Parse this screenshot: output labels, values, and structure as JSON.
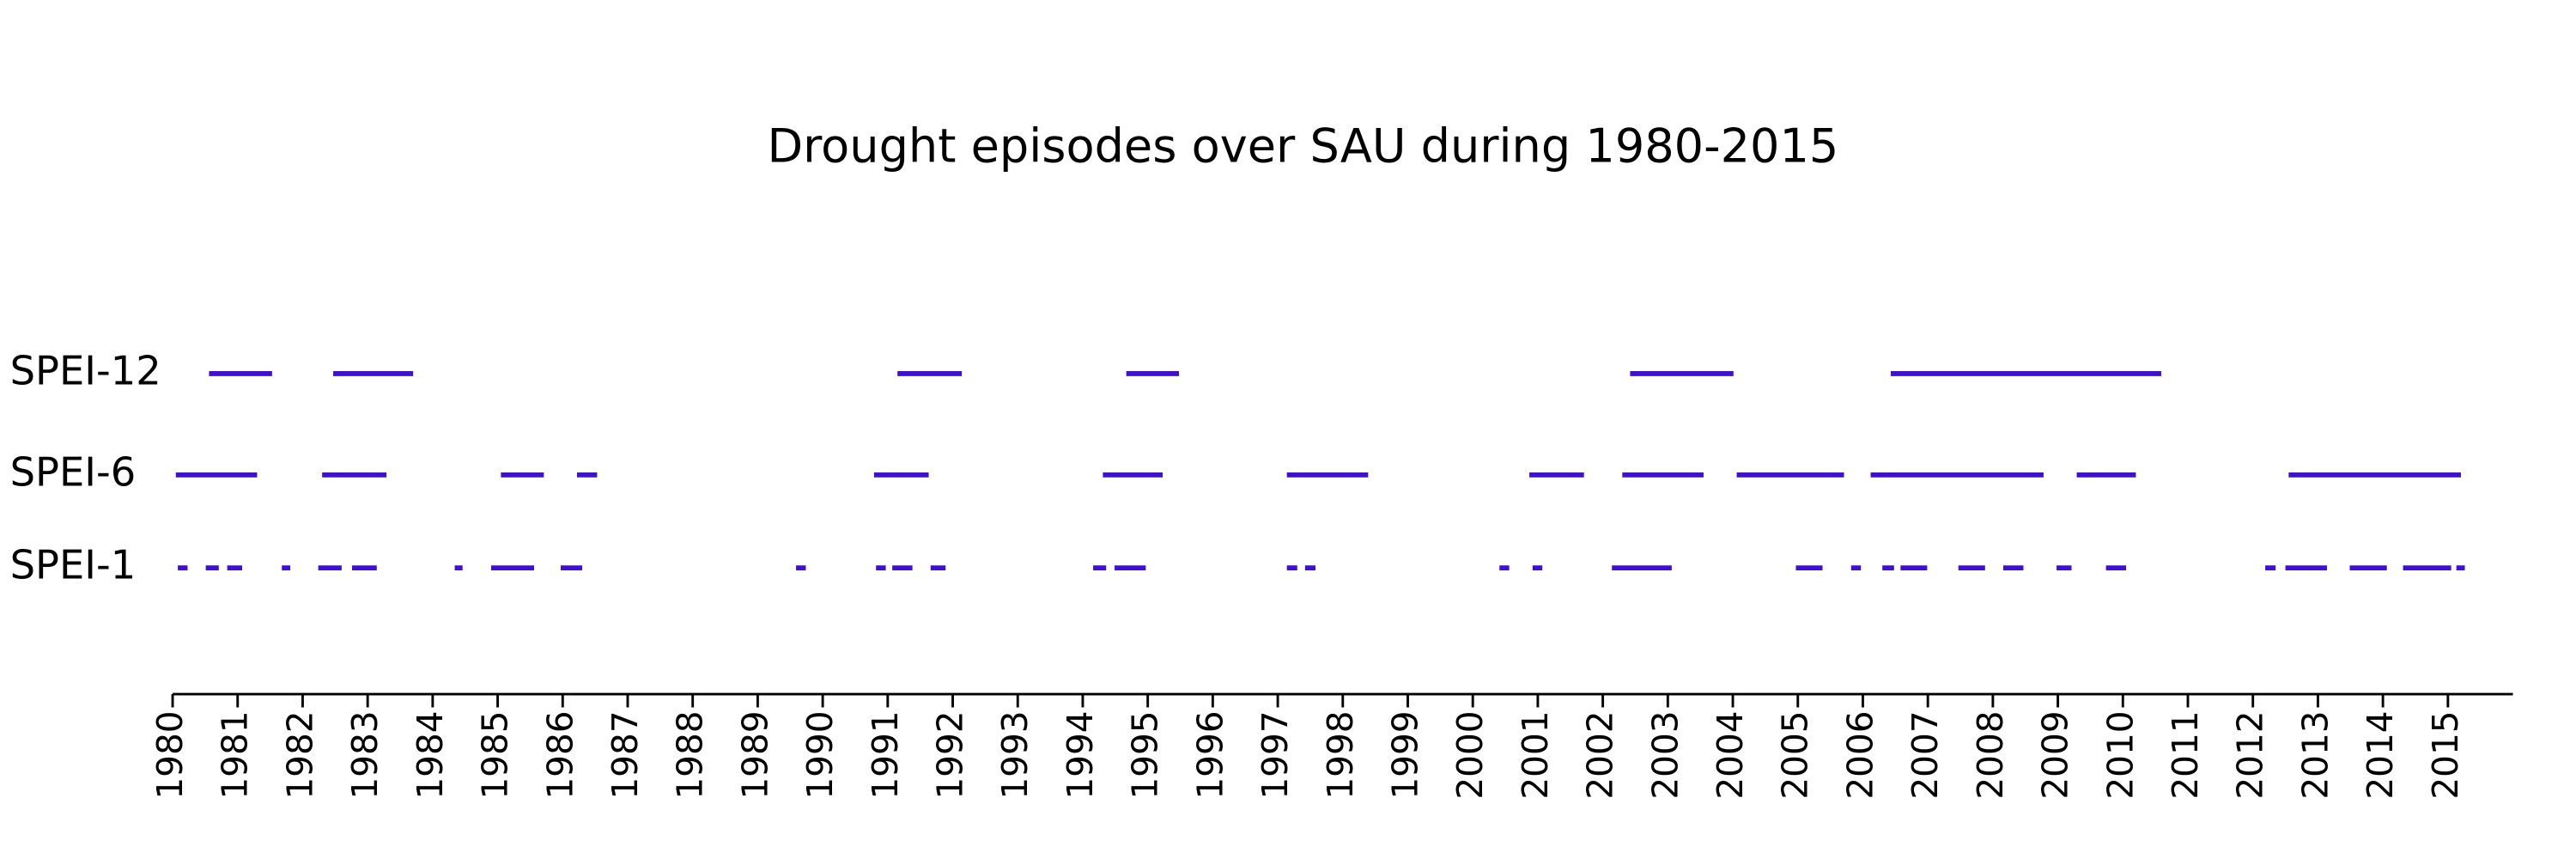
{
  "chart_data": {
    "type": "timeline",
    "title": "Drought episodes over SAU during 1980-2015",
    "xlim": [
      1980,
      2016
    ],
    "xticks": [
      1980,
      1981,
      1982,
      1983,
      1984,
      1985,
      1986,
      1987,
      1988,
      1989,
      1990,
      1991,
      1992,
      1993,
      1994,
      1995,
      1996,
      1997,
      1998,
      1999,
      2000,
      2001,
      2002,
      2003,
      2004,
      2005,
      2006,
      2007,
      2008,
      2009,
      2010,
      2011,
      2012,
      2013,
      2014,
      2015
    ],
    "series": [
      {
        "name": "SPEI-12",
        "color": "#4010d0",
        "start": [
          1980.56,
          1982.47,
          1991.15,
          1994.67,
          2002.42,
          2006.43
        ],
        "end": [
          1981.53,
          1983.7,
          1992.14,
          1995.48,
          2004.01,
          2010.59
        ]
      },
      {
        "name": "SPEI-6",
        "color": "#4010d0",
        "start": [
          1980.05,
          1982.3,
          1985.05,
          1986.22,
          1990.79,
          1994.31,
          1997.14,
          2000.87,
          2002.3,
          2004.06,
          2006.12,
          2009.29,
          2012.55
        ],
        "end": [
          1981.3,
          1983.29,
          1985.71,
          1986.53,
          1991.63,
          1995.23,
          1998.39,
          2001.71,
          2003.55,
          2005.71,
          2008.78,
          2010.2,
          2015.2
        ]
      },
      {
        "name": "SPEI-1",
        "color": "#4010d0",
        "start": [
          1980.08,
          1980.51,
          1980.84,
          1981.68,
          1982.24,
          1982.76,
          1984.34,
          1984.9,
          1985.97,
          1989.59,
          1990.82,
          1991.07,
          1991.66,
          1994.16,
          1994.49,
          1997.14,
          1997.42,
          2000.41,
          2000.92,
          2002.14,
          2004.97,
          2005.82,
          2006.3,
          2006.58,
          2007.47,
          2008.16,
          2008.98,
          2009.74,
          2012.19,
          2012.5,
          2013.49,
          2014.31,
          2015.13
        ],
        "end": [
          1980.23,
          1980.71,
          1981.07,
          1981.81,
          1982.6,
          1983.14,
          1984.46,
          1985.56,
          1986.3,
          1989.74,
          1990.97,
          1991.38,
          1991.89,
          1994.36,
          1994.97,
          1997.3,
          1997.58,
          2000.56,
          2001.07,
          2003.06,
          2005.38,
          2005.97,
          2006.48,
          2006.99,
          2007.88,
          2008.47,
          2009.21,
          2010.05,
          2012.35,
          2013.14,
          2014.06,
          2015.05,
          2015.26
        ]
      }
    ]
  }
}
